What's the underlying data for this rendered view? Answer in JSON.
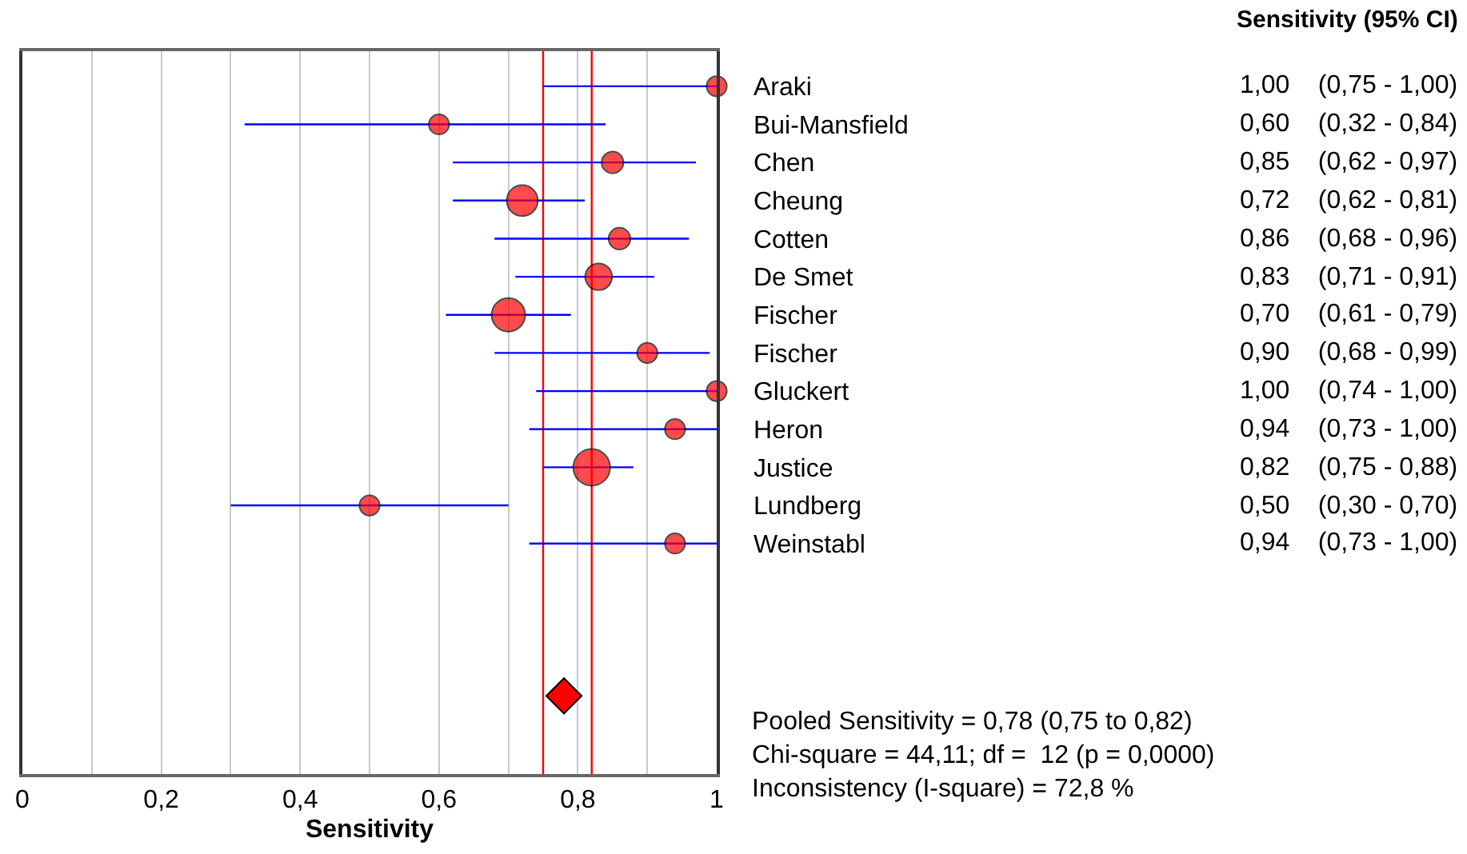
{
  "chart_data": {
    "type": "bubble",
    "orientation": "horizontal",
    "xlabel": "Sensitivity",
    "categories": [
      "Araki",
      "Bui-Mansfield",
      "Chen",
      "Cheung",
      "Cotten",
      "De Smet",
      "Fischer",
      "Fischer",
      "Gluckert",
      "Heron",
      "Justice",
      "Lundberg",
      "Weinstabl",
      null,
      null,
      null,
      null
    ],
    "series": [
      {
        "color": "#ff0000",
        "values": [
          1.0,
          0.6,
          0.85,
          0.72,
          0.86,
          0.83,
          0.7,
          0.9,
          1.0,
          0.94,
          0.82,
          0.5,
          0.94,
          null,
          null,
          null,
          null
        ],
        "sizes": [
          0.3,
          0.3,
          0.35,
          0.71,
          0.35,
          0.53,
          0.83,
          0.3,
          0.3,
          0.3,
          1,
          0.3,
          0.3,
          null,
          null,
          null,
          null
        ],
        "errors": [
          [
            0.75,
            1.0
          ],
          [
            0.32,
            0.84
          ],
          [
            0.62,
            0.97
          ],
          [
            0.62,
            0.81
          ],
          [
            0.68,
            0.96
          ],
          [
            0.71,
            0.91
          ],
          [
            0.61,
            0.79
          ],
          [
            0.68,
            0.99
          ],
          [
            0.74,
            1.0
          ],
          [
            0.73,
            1.0
          ],
          [
            0.75,
            0.88
          ],
          [
            0.3,
            0.7
          ],
          [
            0.73,
            1.0
          ],
          null,
          null,
          null,
          null
        ],
        "value_labels": [
          "1,00    (0,75 - 1,00)",
          "0,60    (0,32 - 0,84)",
          "0,85    (0,62 - 0,97)",
          "0,72    (0,62 - 0,81)",
          "0,86    (0,68 - 0,96)",
          "0,83    (0,71 - 0,91)",
          "0,70    (0,61 - 0,79)",
          "0,90    (0,68 - 0,99)",
          "1,00    (0,74 - 1,00)",
          "0,94    (0,73 - 1,00)",
          "0,82    (0,75 - 0,88)",
          "0,50    (0,30 - 0,70)",
          "0,94    (0,73 - 1,00)",
          null,
          null,
          null,
          null
        ]
      },
      {
        "type": "scatter",
        "marker": "diamond",
        "color": "#ff0000",
        "values": [
          null,
          null,
          null,
          null,
          null,
          null,
          null,
          null,
          null,
          null,
          null,
          null,
          null,
          null,
          null,
          null,
          0.78
        ]
      }
    ],
    "ref_lines": [
      {
        "axis": "x",
        "value": 0.75,
        "color": "#ff0000"
      },
      {
        "axis": "x",
        "value": 0.82,
        "color": "#ff0000"
      }
    ],
    "xlim": [
      0,
      1
    ],
    "xticks": [
      0,
      {
        "value": 0.1,
        "label": null
      },
      {
        "value": 0.2,
        "label": "0,2"
      },
      {
        "value": 0.3,
        "label": null
      },
      {
        "value": 0.4,
        "label": "0,4"
      },
      {
        "value": 0.5,
        "label": null
      },
      {
        "value": 0.6,
        "label": "0,6"
      },
      {
        "value": 0.7,
        "label": null
      },
      {
        "value": 0.8,
        "label": "0,8"
      },
      {
        "value": 0.9,
        "label": null
      },
      1
    ],
    "grid": "x",
    "annotations": [
      "Sensitivity (95% CI)",
      "Pooled Sensitivity = 0,78 (0,75 to 0,82)",
      "Chi-square = 44,11; df =  12 (p = 0,0000)",
      "Inconsistency (I-square) = 72,8 %"
    ]
  }
}
